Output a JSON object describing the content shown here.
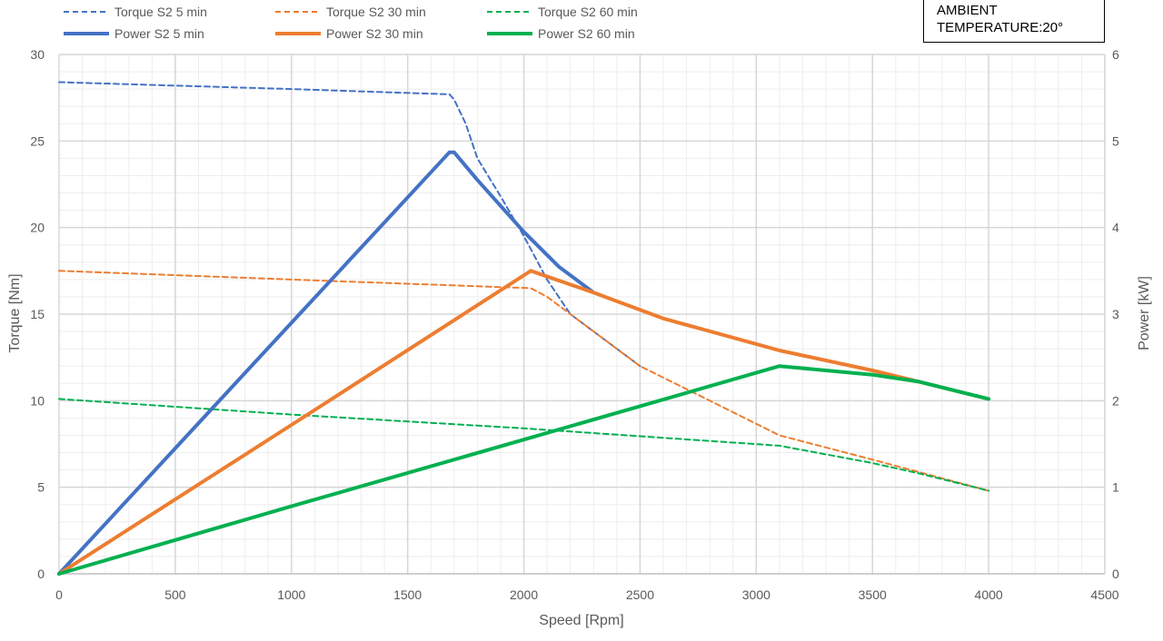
{
  "note": {
    "line1": "AMBIENT",
    "line2": "TEMPERATURE:20°"
  },
  "chart_data": {
    "type": "line",
    "title": "",
    "xlabel": "Speed [Rpm]",
    "ylabel": "Torque [Nm]",
    "y2label": "Power [kW]",
    "xlim": [
      0,
      4500
    ],
    "ylim": [
      0,
      30
    ],
    "y2lim": [
      0,
      6
    ],
    "x_ticks": [
      0,
      500,
      1000,
      1500,
      2000,
      2500,
      3000,
      3500,
      4000,
      4500
    ],
    "y_ticks": [
      0,
      5,
      10,
      15,
      20,
      25,
      30
    ],
    "y2_ticks": [
      0,
      1,
      2,
      3,
      4,
      5,
      6
    ],
    "grid": true,
    "legend_position": "top",
    "series": [
      {
        "name": "Torque S2 5 min",
        "axis": "left",
        "style": "dashed",
        "color": "#4472C4",
        "points": [
          [
            0,
            28.4
          ],
          [
            1000,
            28.0
          ],
          [
            1680,
            27.7
          ],
          [
            1700,
            27.4
          ],
          [
            1750,
            26.0
          ],
          [
            1800,
            24.0
          ],
          [
            1900,
            21.8
          ],
          [
            2000,
            19.5
          ],
          [
            2100,
            17.0
          ],
          [
            2200,
            15.0
          ],
          [
            2350,
            13.5
          ],
          [
            2500,
            12.0
          ]
        ]
      },
      {
        "name": "Torque S2 30 min",
        "axis": "left",
        "style": "dashed",
        "color": "#ED7D31",
        "points": [
          [
            0,
            17.5
          ],
          [
            1000,
            17.0
          ],
          [
            2030,
            16.5
          ],
          [
            2100,
            16.0
          ],
          [
            2300,
            14.0
          ],
          [
            2500,
            12.0
          ],
          [
            2800,
            10.0
          ],
          [
            3100,
            8.0
          ],
          [
            3500,
            6.6
          ],
          [
            4000,
            4.8
          ]
        ]
      },
      {
        "name": "Torque S2 60 min",
        "axis": "left",
        "style": "dashed",
        "color": "#00B050",
        "points": [
          [
            0,
            10.1
          ],
          [
            1000,
            9.2
          ],
          [
            2000,
            8.4
          ],
          [
            3100,
            7.4
          ],
          [
            3500,
            6.4
          ],
          [
            3700,
            5.8
          ],
          [
            4000,
            4.8
          ]
        ]
      },
      {
        "name": "Power S2 5 min",
        "axis": "right",
        "style": "solid",
        "color": "#4472C4",
        "points": [
          [
            0,
            0
          ],
          [
            1000,
            2.9
          ],
          [
            1680,
            4.87
          ],
          [
            1700,
            4.87
          ],
          [
            1800,
            4.55
          ],
          [
            2000,
            3.95
          ],
          [
            2150,
            3.55
          ],
          [
            2300,
            3.25
          ]
        ]
      },
      {
        "name": "Power S2 30 min",
        "axis": "right",
        "style": "solid",
        "color": "#ED7D31",
        "points": [
          [
            0,
            0
          ],
          [
            1000,
            1.72
          ],
          [
            2030,
            3.5
          ],
          [
            2300,
            3.25
          ],
          [
            2600,
            2.95
          ],
          [
            3100,
            2.58
          ],
          [
            3500,
            2.35
          ],
          [
            3700,
            2.22
          ],
          [
            4000,
            2.02
          ]
        ]
      },
      {
        "name": "Power S2 60 min",
        "axis": "right",
        "style": "solid",
        "color": "#00B050",
        "points": [
          [
            0,
            0
          ],
          [
            1000,
            0.78
          ],
          [
            2000,
            1.55
          ],
          [
            3100,
            2.4
          ],
          [
            3500,
            2.3
          ],
          [
            3700,
            2.22
          ],
          [
            4000,
            2.02
          ]
        ]
      }
    ]
  }
}
